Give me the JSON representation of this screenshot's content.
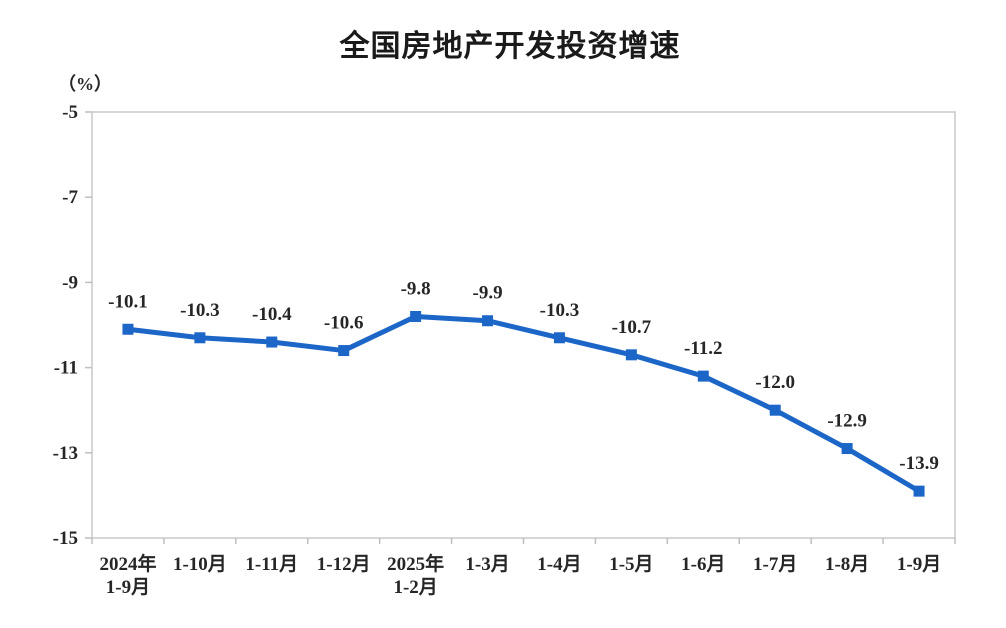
{
  "chart_data": {
    "type": "line",
    "title": "全国房地产开发投资增速",
    "unit": "（%）",
    "categories": [
      "2024年\n1-9月",
      "1-10月",
      "1-11月",
      "1-12月",
      "2025年\n1-2月",
      "1-3月",
      "1-4月",
      "1-5月",
      "1-6月",
      "1-7月",
      "1-8月",
      "1-9月"
    ],
    "series": [
      {
        "name": "全国房地产开发投资增速",
        "values": [
          -10.1,
          -10.3,
          -10.4,
          -10.6,
          -9.8,
          -9.9,
          -10.3,
          -10.7,
          -11.2,
          -12.0,
          -12.9,
          -13.9
        ]
      }
    ],
    "data_labels": [
      "-10.1",
      "-10.3",
      "-10.4",
      "-10.6",
      "-9.8",
      "-9.9",
      "-10.3",
      "-10.7",
      "-11.2",
      "-12.0",
      "-12.9",
      "-13.9"
    ],
    "ylim": [
      -15,
      -5
    ],
    "yticks": [
      -5,
      -7,
      -9,
      -11,
      -13,
      -15
    ],
    "grid": false,
    "legend": "none",
    "marker": "square",
    "colors": {
      "line": "#1C66C8",
      "marker": "#1C66C8",
      "text": "#262626",
      "axis_border": "#C9C9C9",
      "tick": "#BFBFBF"
    }
  }
}
